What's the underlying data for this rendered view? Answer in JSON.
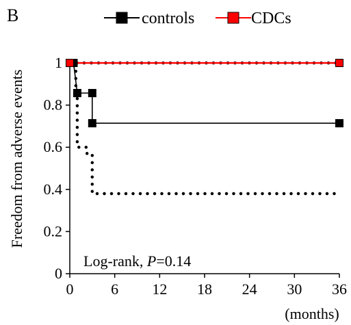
{
  "panel_label": "B",
  "annotation": {
    "prefix": "Log-rank, ",
    "p_symbol": "P",
    "p_value": "=0.14"
  },
  "chart_data": {
    "type": "line",
    "title": "",
    "xlabel": "(months)",
    "ylabel": "Freedom from adverse events",
    "xlim": [
      0,
      36
    ],
    "ylim": [
      0,
      1
    ],
    "xticks": [
      0,
      6,
      12,
      18,
      24,
      30,
      36
    ],
    "yticks": [
      0,
      0.2,
      0.4,
      0.6,
      0.8,
      1
    ],
    "ytick_labels": [
      "0",
      "0.2",
      "0.4",
      "0.6",
      "0.8",
      "1"
    ],
    "legend": {
      "position": "top",
      "entries": [
        "controls",
        "CDCs"
      ]
    },
    "grid": false,
    "series": [
      {
        "name": "controls",
        "color": "#000000",
        "step": true,
        "marker": "square",
        "points": [
          [
            0,
            1
          ],
          [
            0.5,
            1
          ],
          [
            1,
            0.857
          ],
          [
            3,
            0.857
          ],
          [
            3,
            0.714
          ],
          [
            36,
            0.714
          ]
        ],
        "marker_points": [
          [
            0,
            1
          ],
          [
            0.5,
            1
          ],
          [
            1,
            0.857
          ],
          [
            3,
            0.857
          ],
          [
            3,
            0.714
          ],
          [
            36,
            0.714
          ]
        ],
        "ci_lower": [
          [
            0,
            1
          ],
          [
            0.8,
            1
          ],
          [
            0.8,
            0.86
          ],
          [
            1,
            0.86
          ],
          [
            1,
            0.6
          ],
          [
            2.3,
            0.6
          ],
          [
            2.3,
            0.57
          ],
          [
            3,
            0.57
          ],
          [
            3,
            0.38
          ],
          [
            36,
            0.38
          ]
        ],
        "ci_upper": [
          [
            0,
            1
          ],
          [
            36,
            1
          ]
        ]
      },
      {
        "name": "CDCs",
        "color": "#ff0000",
        "step": true,
        "marker": "square",
        "points": [
          [
            0,
            1
          ],
          [
            36,
            1
          ]
        ],
        "marker_points": [
          [
            0,
            1
          ],
          [
            36,
            1
          ]
        ]
      }
    ]
  }
}
